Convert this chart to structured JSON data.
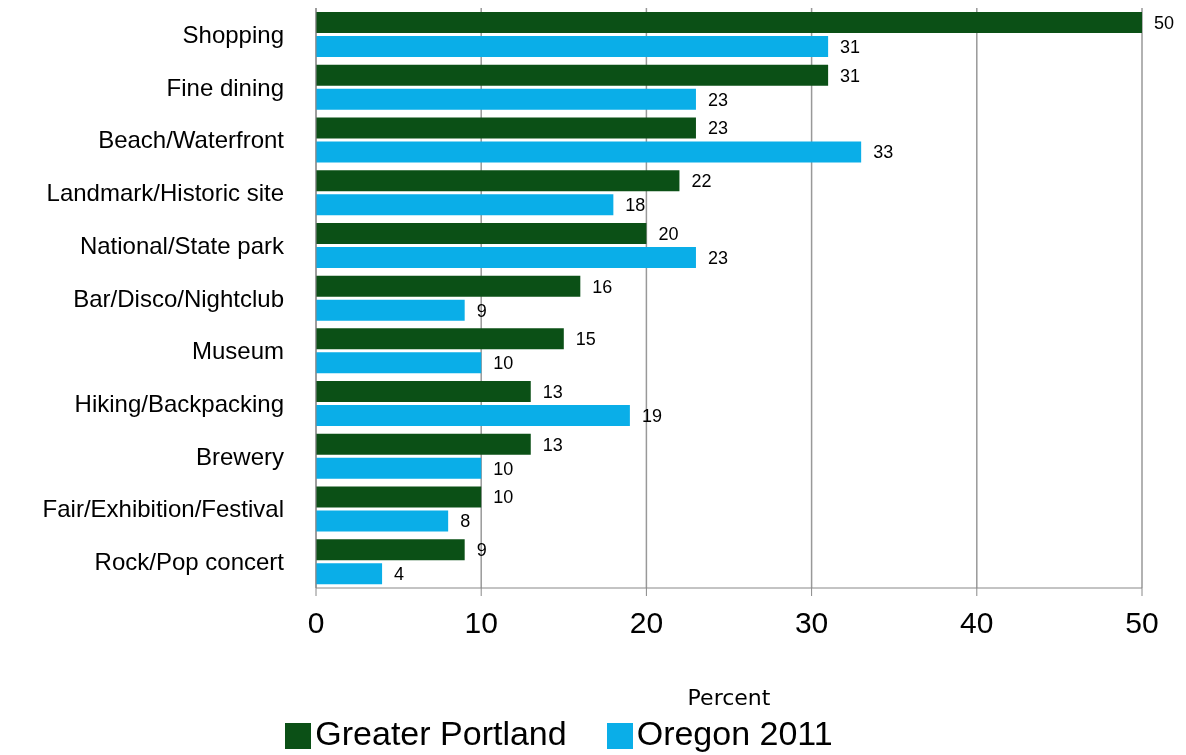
{
  "chart_data": {
    "type": "bar",
    "orientation": "horizontal",
    "categories": [
      "Shopping",
      "Fine dining",
      "Beach/Waterfront",
      "Landmark/Historic site",
      "National/State park",
      "Bar/Disco/Nightclub",
      "Museum",
      "Hiking/Backpacking",
      "Brewery",
      "Fair/Exhibition/Festival",
      "Rock/Pop concert"
    ],
    "series": [
      {
        "name": "Greater Portland",
        "color": "#0b5016",
        "values": [
          50,
          31,
          23,
          22,
          20,
          16,
          15,
          13,
          13,
          10,
          9
        ]
      },
      {
        "name": "Oregon 2011",
        "color": "#0aaee8",
        "values": [
          31,
          23,
          33,
          18,
          23,
          9,
          10,
          19,
          10,
          8,
          4
        ]
      }
    ],
    "xlabel": "Percent",
    "xlim": [
      0,
      50
    ],
    "xticks": [
      0,
      10,
      20,
      30,
      40,
      50
    ],
    "grid": "x",
    "legend": "bottom",
    "data_labels": true
  }
}
